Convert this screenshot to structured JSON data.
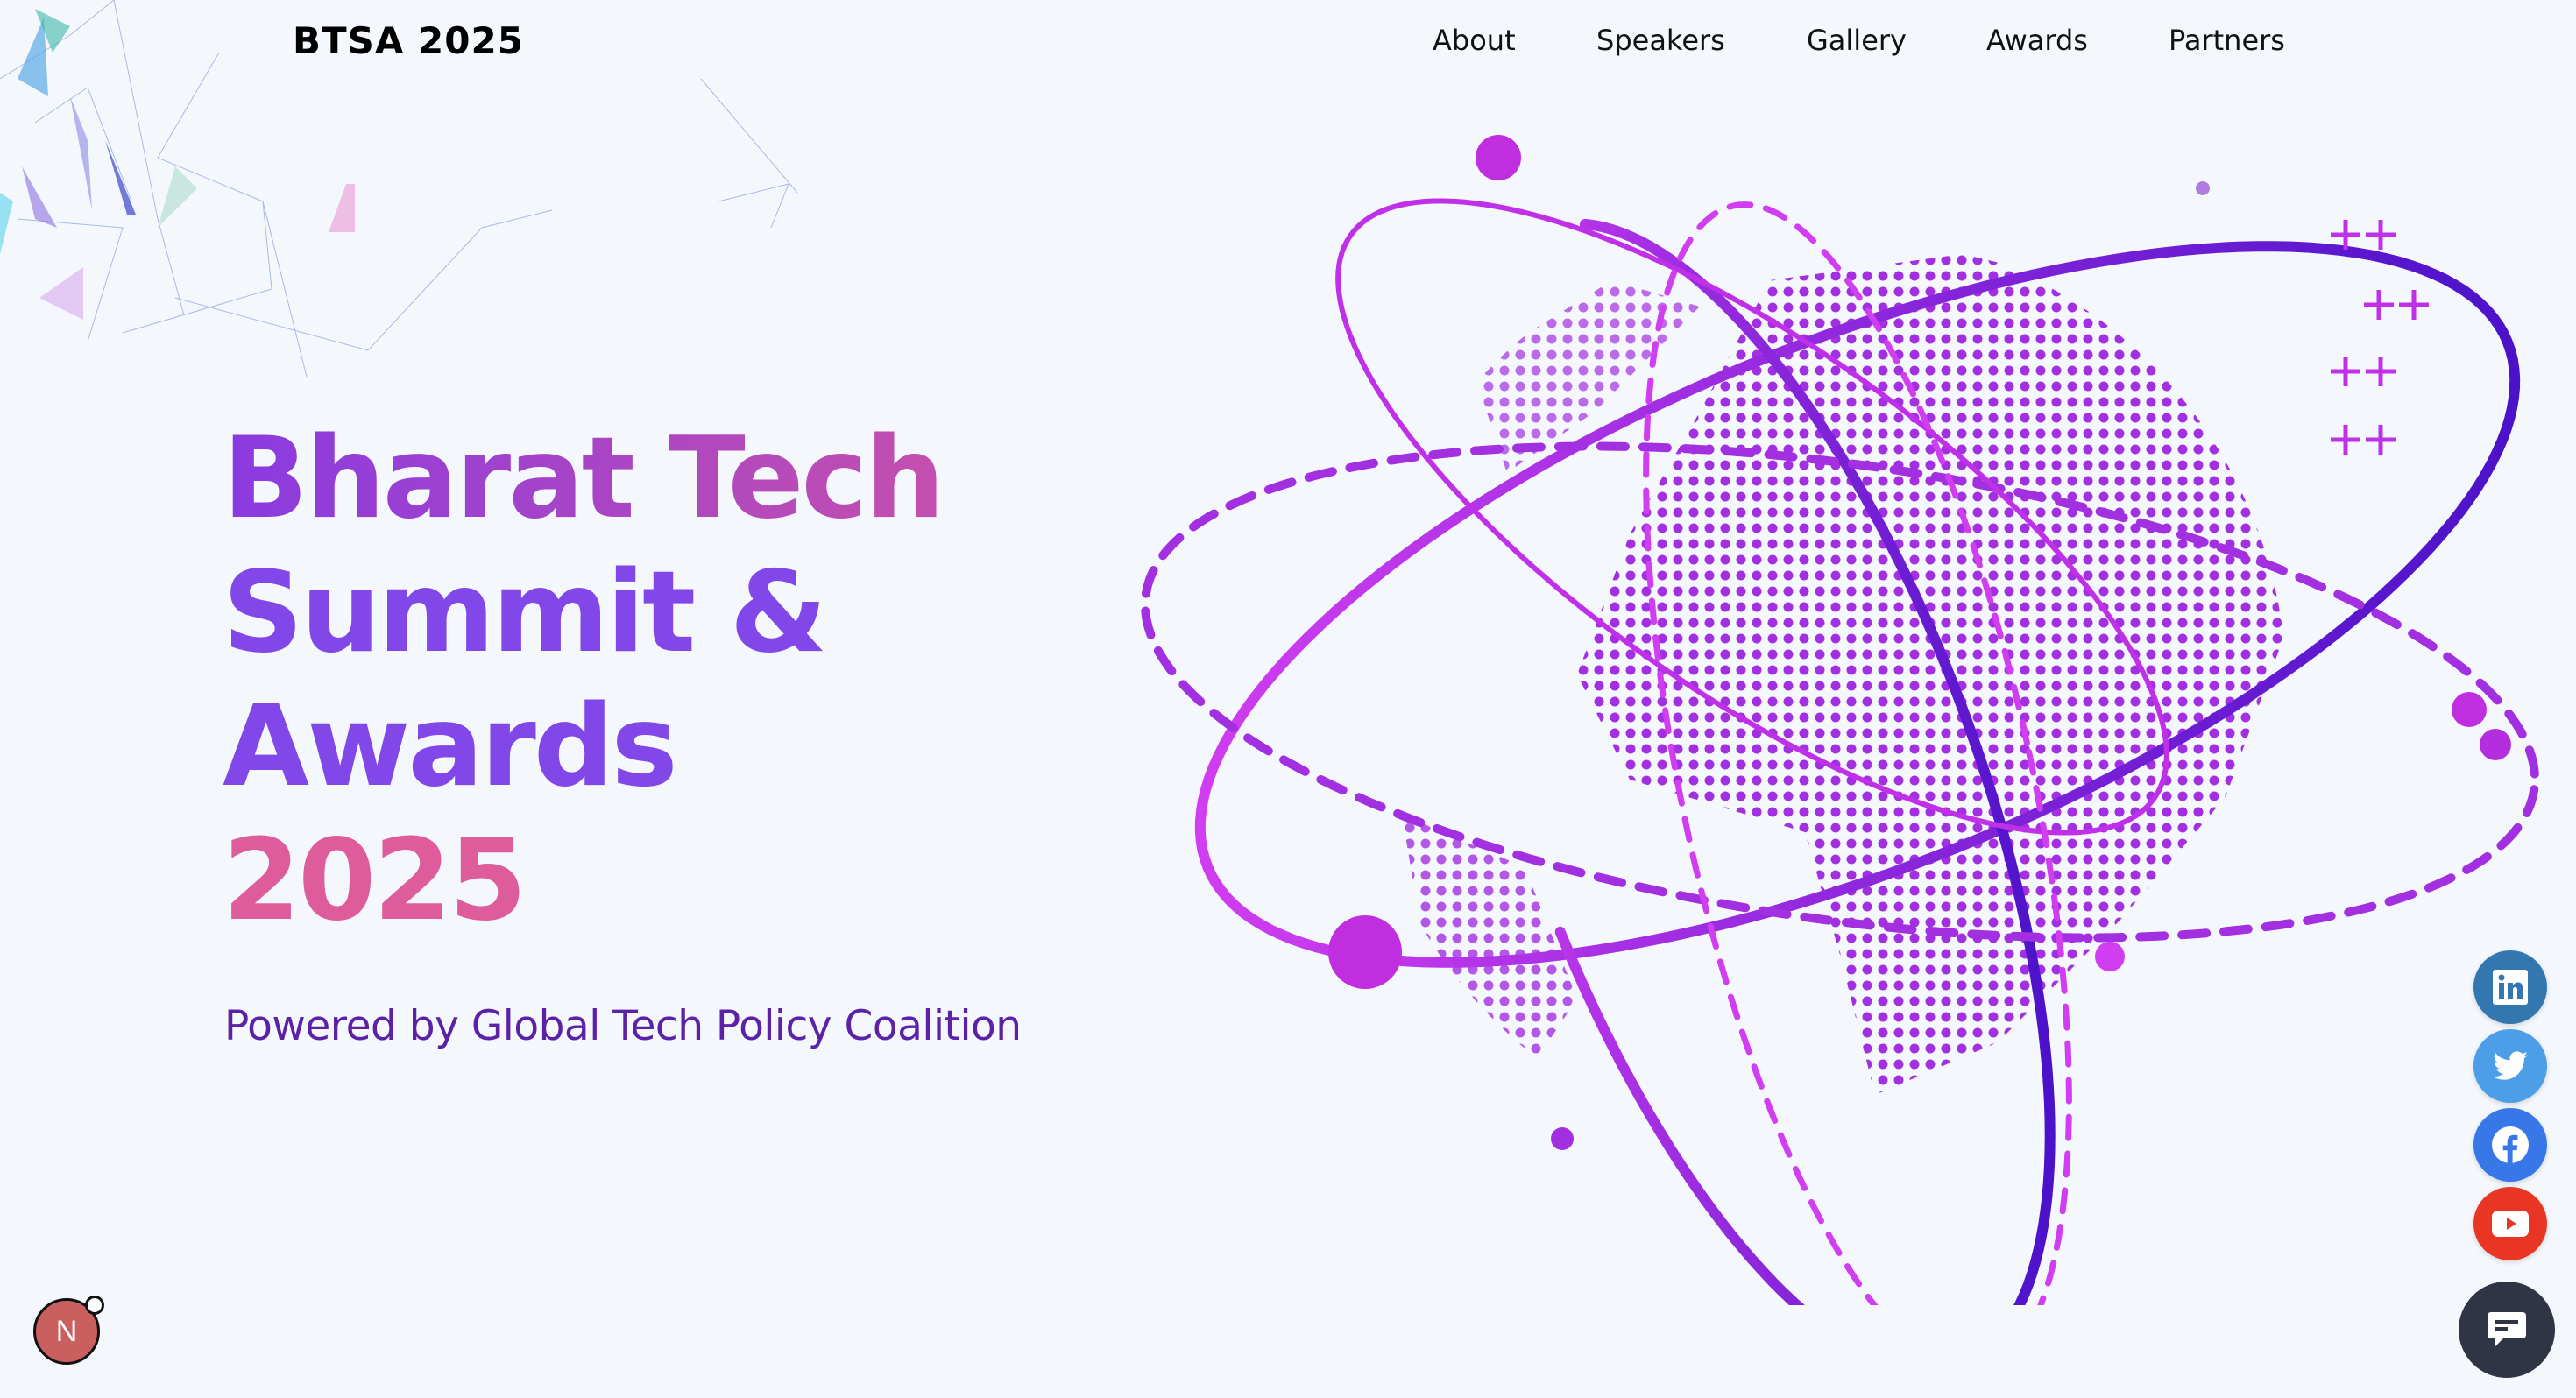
{
  "header": {
    "logo": "BTSA 2025",
    "nav": [
      {
        "label": "About"
      },
      {
        "label": "Speakers"
      },
      {
        "label": "Gallery"
      },
      {
        "label": "Awards"
      },
      {
        "label": "Partners"
      }
    ]
  },
  "hero": {
    "title_line1": "Bharat Tech",
    "title_line2": "Summit &",
    "title_line3": "Awards",
    "title_line4": "2025",
    "subtitle": "Powered by Global Tech Policy Coalition"
  },
  "social": [
    {
      "icon": "linkedin-icon",
      "color": "#3277b0"
    },
    {
      "icon": "twitter-icon",
      "color": "#4c9fe6"
    },
    {
      "icon": "facebook-icon",
      "color": "#3877e8"
    },
    {
      "icon": "youtube-icon",
      "color": "#e93524"
    }
  ],
  "chat": {
    "icon": "chat-icon",
    "color": "#2f3545"
  },
  "dev_badge": {
    "letter": "N"
  },
  "colors": {
    "purple": "#8147e8",
    "pink": "#de5c9c",
    "subtitle": "#5b21a6",
    "background": "#f4f8fc"
  }
}
